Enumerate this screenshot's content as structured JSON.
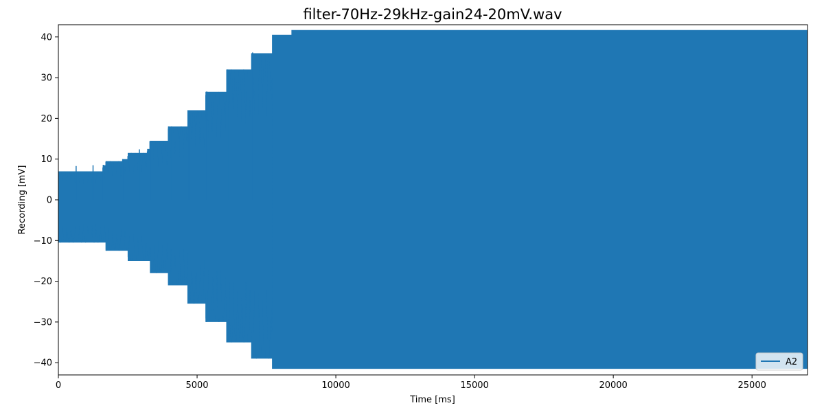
{
  "chart_data": {
    "type": "line",
    "title": "filter-70Hz-29kHz-gain24-20mV.wav",
    "xlabel": "Time [ms]",
    "ylabel": "Recording [mV]",
    "xlim": [
      0,
      27000
    ],
    "ylim": [
      -43,
      43
    ],
    "xticks": [
      0,
      5000,
      10000,
      15000,
      20000,
      25000
    ],
    "yticks": [
      -40,
      -30,
      -20,
      -10,
      0,
      10,
      20,
      30,
      40
    ],
    "grid": false,
    "legend": {
      "placement": "lower-right",
      "entries": [
        "A2"
      ]
    },
    "series": [
      {
        "name": "A2",
        "color": "#1f77b4",
        "envelope": {
          "description_units": "time ms, min/max mV per segment",
          "segments": [
            {
              "t0": 0,
              "t1": 1600,
              "min": -10.5,
              "max": 7
            },
            {
              "t0": 1600,
              "t1": 1700,
              "min": -10.5,
              "max": 8.5
            },
            {
              "t0": 1700,
              "t1": 2300,
              "min": -12.5,
              "max": 9.5
            },
            {
              "t0": 2300,
              "t1": 2500,
              "min": -12.5,
              "max": 10
            },
            {
              "t0": 2500,
              "t1": 3200,
              "min": -15,
              "max": 11.5
            },
            {
              "t0": 3200,
              "t1": 3300,
              "min": -15,
              "max": 12.5
            },
            {
              "t0": 3300,
              "t1": 3950,
              "min": -18,
              "max": 14.5
            },
            {
              "t0": 3950,
              "t1": 4650,
              "min": -21,
              "max": 18
            },
            {
              "t0": 4650,
              "t1": 5300,
              "min": -25.5,
              "max": 22
            },
            {
              "t0": 5300,
              "t1": 6050,
              "min": -30,
              "max": 26.5
            },
            {
              "t0": 6050,
              "t1": 6950,
              "min": -35,
              "max": 32
            },
            {
              "t0": 6950,
              "t1": 7700,
              "min": -39,
              "max": 36
            },
            {
              "t0": 7700,
              "t1": 8400,
              "min": -41.5,
              "max": 40.5
            },
            {
              "t0": 8400,
              "t1": 27000,
              "min": -41.5,
              "max": 41.7
            }
          ]
        }
      }
    ]
  }
}
